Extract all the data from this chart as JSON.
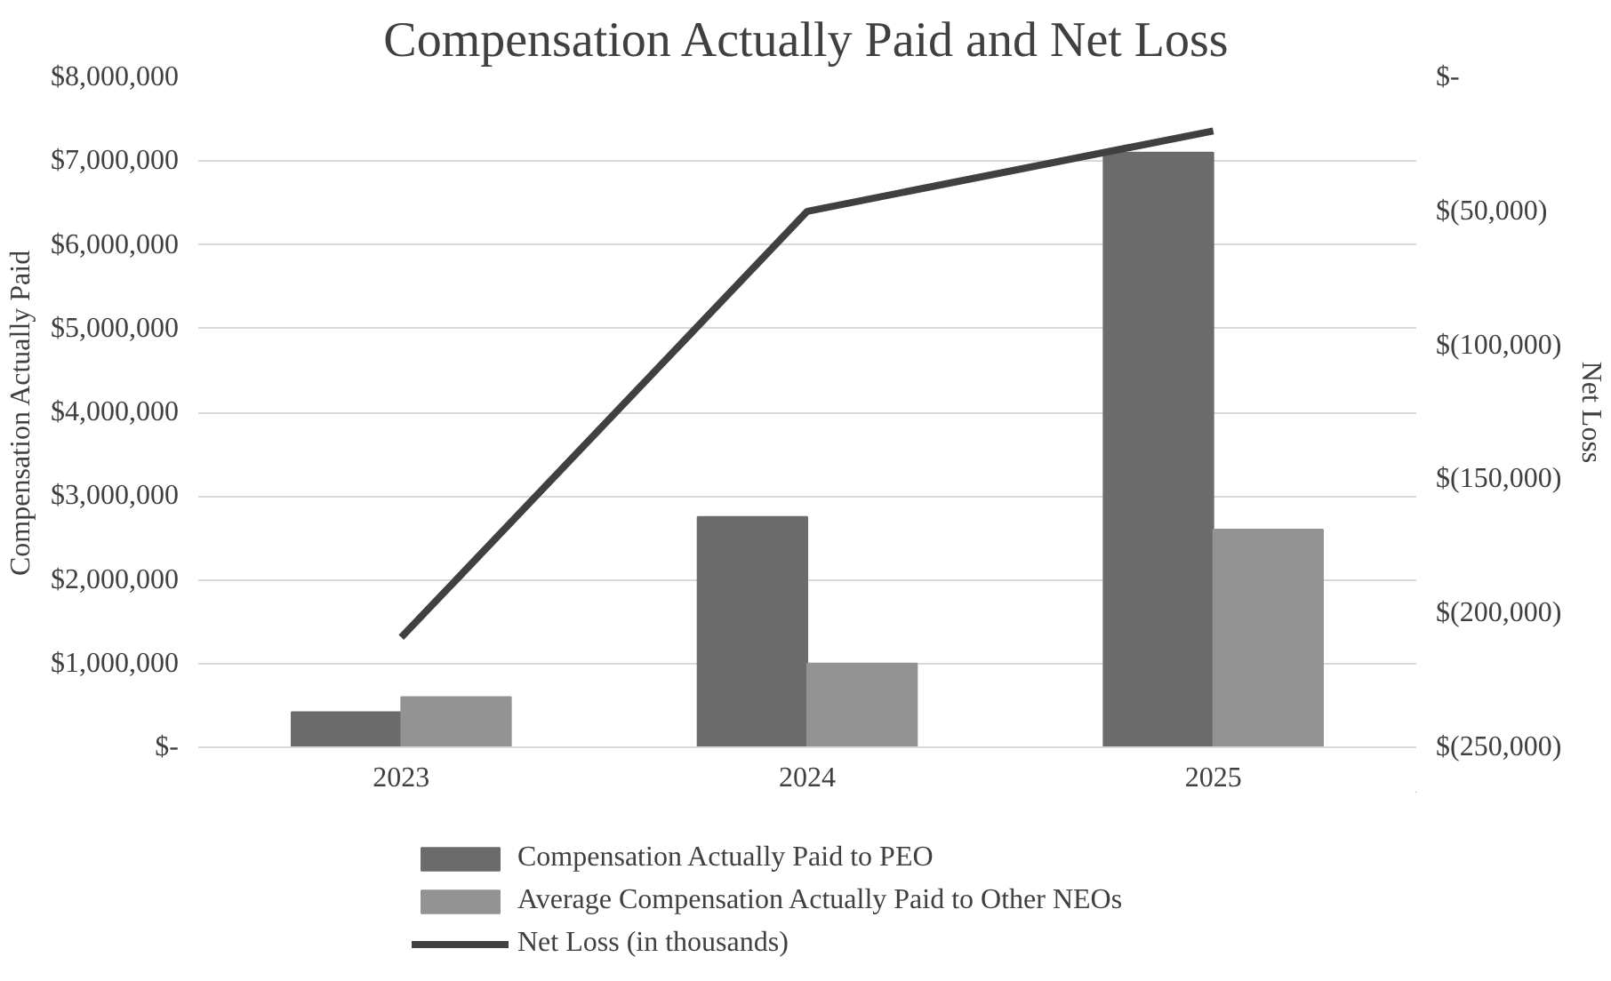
{
  "chart_data": {
    "type": "bar",
    "title": "Compensation Actually Paid and Net Loss",
    "ylabel": "Compensation Actually Paid",
    "y2label": "Net Loss",
    "categories": [
      "2023",
      "2024",
      "2025"
    ],
    "series": [
      {
        "name": "Compensation Actually Paid to PEO",
        "color": "#6b6b6b",
        "values": [
          420000,
          2750000,
          7100000
        ]
      },
      {
        "name": "Average Compensation Actually Paid to Other NEOs",
        "color": "#939393",
        "values": [
          600000,
          1000000,
          2600000
        ]
      },
      {
        "name": "Net Loss (in thousands)",
        "type": "line",
        "axis": "y2",
        "color": "#404040",
        "values": [
          -209000,
          -50000,
          -20000
        ]
      }
    ],
    "ylim": [
      0,
      8000000
    ],
    "yticks": [
      {
        "value": 0,
        "label": "$-"
      },
      {
        "value": 1000000,
        "label": "$1,000,000"
      },
      {
        "value": 2000000,
        "label": "$2,000,000"
      },
      {
        "value": 3000000,
        "label": "$3,000,000"
      },
      {
        "value": 4000000,
        "label": "$4,000,000"
      },
      {
        "value": 5000000,
        "label": "$5,000,000"
      },
      {
        "value": 6000000,
        "label": "$6,000,000"
      },
      {
        "value": 7000000,
        "label": "$7,000,000"
      },
      {
        "value": 8000000,
        "label": "$8,000,000"
      }
    ],
    "y2lim": [
      -250000,
      0
    ],
    "y2ticks": [
      {
        "value": -250000,
        "label": "$(250,000)"
      },
      {
        "value": -200000,
        "label": "$(200,000)"
      },
      {
        "value": -150000,
        "label": "$(150,000)"
      },
      {
        "value": -100000,
        "label": "$(100,000)"
      },
      {
        "value": -50000,
        "label": "$(50,000)"
      },
      {
        "value": 0,
        "label": "$-"
      }
    ],
    "grid": "y",
    "legend": "bottom",
    "marker": "none",
    "line_style": "solid"
  }
}
